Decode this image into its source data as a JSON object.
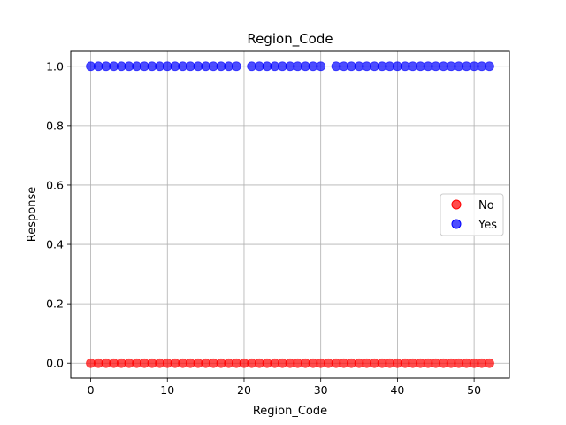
{
  "chart_data": {
    "type": "scatter",
    "title": "Region_Code",
    "xlabel": "Region_Code",
    "ylabel": "Response",
    "xlim": [
      -2.6,
      54.6
    ],
    "ylim": [
      -0.05,
      1.05
    ],
    "xticks": [
      0,
      10,
      20,
      30,
      40,
      50
    ],
    "yticks": [
      0.0,
      0.2,
      0.4,
      0.6,
      0.8,
      1.0
    ],
    "grid": true,
    "legend_position": "center-right",
    "series": [
      {
        "name": "No",
        "color": "#ff0000",
        "points": [
          [
            0,
            0
          ],
          [
            1,
            0
          ],
          [
            2,
            0
          ],
          [
            3,
            0
          ],
          [
            4,
            0
          ],
          [
            5,
            0
          ],
          [
            6,
            0
          ],
          [
            7,
            0
          ],
          [
            8,
            0
          ],
          [
            9,
            0
          ],
          [
            10,
            0
          ],
          [
            11,
            0
          ],
          [
            12,
            0
          ],
          [
            13,
            0
          ],
          [
            14,
            0
          ],
          [
            15,
            0
          ],
          [
            16,
            0
          ],
          [
            17,
            0
          ],
          [
            18,
            0
          ],
          [
            19,
            0
          ],
          [
            20,
            0
          ],
          [
            21,
            0
          ],
          [
            22,
            0
          ],
          [
            23,
            0
          ],
          [
            24,
            0
          ],
          [
            25,
            0
          ],
          [
            26,
            0
          ],
          [
            27,
            0
          ],
          [
            28,
            0
          ],
          [
            29,
            0
          ],
          [
            30,
            0
          ],
          [
            31,
            0
          ],
          [
            32,
            0
          ],
          [
            33,
            0
          ],
          [
            34,
            0
          ],
          [
            35,
            0
          ],
          [
            36,
            0
          ],
          [
            37,
            0
          ],
          [
            38,
            0
          ],
          [
            39,
            0
          ],
          [
            40,
            0
          ],
          [
            41,
            0
          ],
          [
            42,
            0
          ],
          [
            43,
            0
          ],
          [
            44,
            0
          ],
          [
            45,
            0
          ],
          [
            46,
            0
          ],
          [
            47,
            0
          ],
          [
            48,
            0
          ],
          [
            49,
            0
          ],
          [
            50,
            0
          ],
          [
            51,
            0
          ],
          [
            52,
            0
          ]
        ]
      },
      {
        "name": "Yes",
        "color": "#0000ff",
        "points": [
          [
            0,
            1
          ],
          [
            1,
            1
          ],
          [
            2,
            1
          ],
          [
            3,
            1
          ],
          [
            4,
            1
          ],
          [
            5,
            1
          ],
          [
            6,
            1
          ],
          [
            7,
            1
          ],
          [
            8,
            1
          ],
          [
            9,
            1
          ],
          [
            10,
            1
          ],
          [
            11,
            1
          ],
          [
            12,
            1
          ],
          [
            13,
            1
          ],
          [
            14,
            1
          ],
          [
            15,
            1
          ],
          [
            16,
            1
          ],
          [
            17,
            1
          ],
          [
            18,
            1
          ],
          [
            19,
            1
          ],
          [
            21,
            1
          ],
          [
            22,
            1
          ],
          [
            23,
            1
          ],
          [
            24,
            1
          ],
          [
            25,
            1
          ],
          [
            26,
            1
          ],
          [
            27,
            1
          ],
          [
            28,
            1
          ],
          [
            29,
            1
          ],
          [
            30,
            1
          ],
          [
            32,
            1
          ],
          [
            33,
            1
          ],
          [
            34,
            1
          ],
          [
            35,
            1
          ],
          [
            36,
            1
          ],
          [
            37,
            1
          ],
          [
            38,
            1
          ],
          [
            39,
            1
          ],
          [
            40,
            1
          ],
          [
            41,
            1
          ],
          [
            42,
            1
          ],
          [
            43,
            1
          ],
          [
            44,
            1
          ],
          [
            45,
            1
          ],
          [
            46,
            1
          ],
          [
            47,
            1
          ],
          [
            48,
            1
          ],
          [
            49,
            1
          ],
          [
            50,
            1
          ],
          [
            51,
            1
          ],
          [
            52,
            1
          ]
        ]
      }
    ]
  }
}
